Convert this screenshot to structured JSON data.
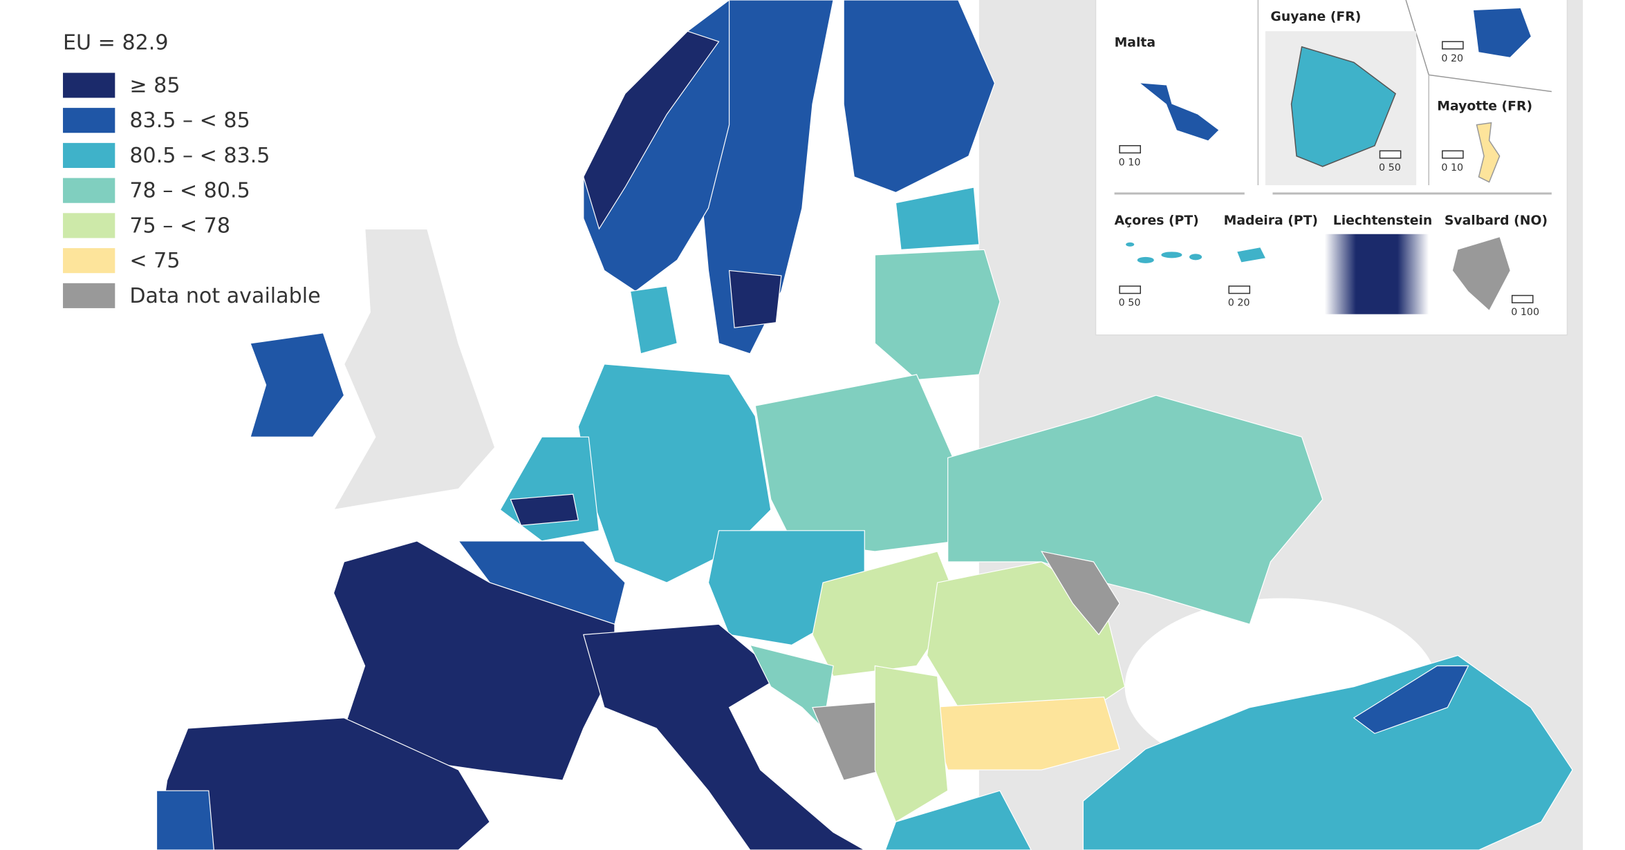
{
  "legend": {
    "title": "EU = 82.9",
    "items": [
      {
        "label": "≥ 85",
        "color": "#1b2a6b"
      },
      {
        "label": "83.5 – < 85",
        "color": "#1f56a6"
      },
      {
        "label": "80.5 – < 83.5",
        "color": "#3fb2c9"
      },
      {
        "label": "78 – < 80.5",
        "color": "#80cfbf"
      },
      {
        "label": "75 – < 78",
        "color": "#cde9a9"
      },
      {
        "label": "< 75",
        "color": "#fde49b"
      },
      {
        "label": "Data not available",
        "color": "#999999"
      }
    ]
  },
  "insets": [
    {
      "scale": "0 20"
    },
    {
      "label": "Malta",
      "scale": "0 10"
    },
    {
      "label": "Guyane (FR)",
      "scale": "0 50"
    },
    {
      "label": "Mayotte (FR)",
      "scale": "0 10"
    },
    {
      "label": "Açores (PT)",
      "scale": "0 50"
    },
    {
      "label": "Madeira (PT)",
      "scale": "0 20"
    },
    {
      "label": "Liechtenstein"
    },
    {
      "label": "Svalbard (NO)",
      "scale": "0 100"
    }
  ]
}
